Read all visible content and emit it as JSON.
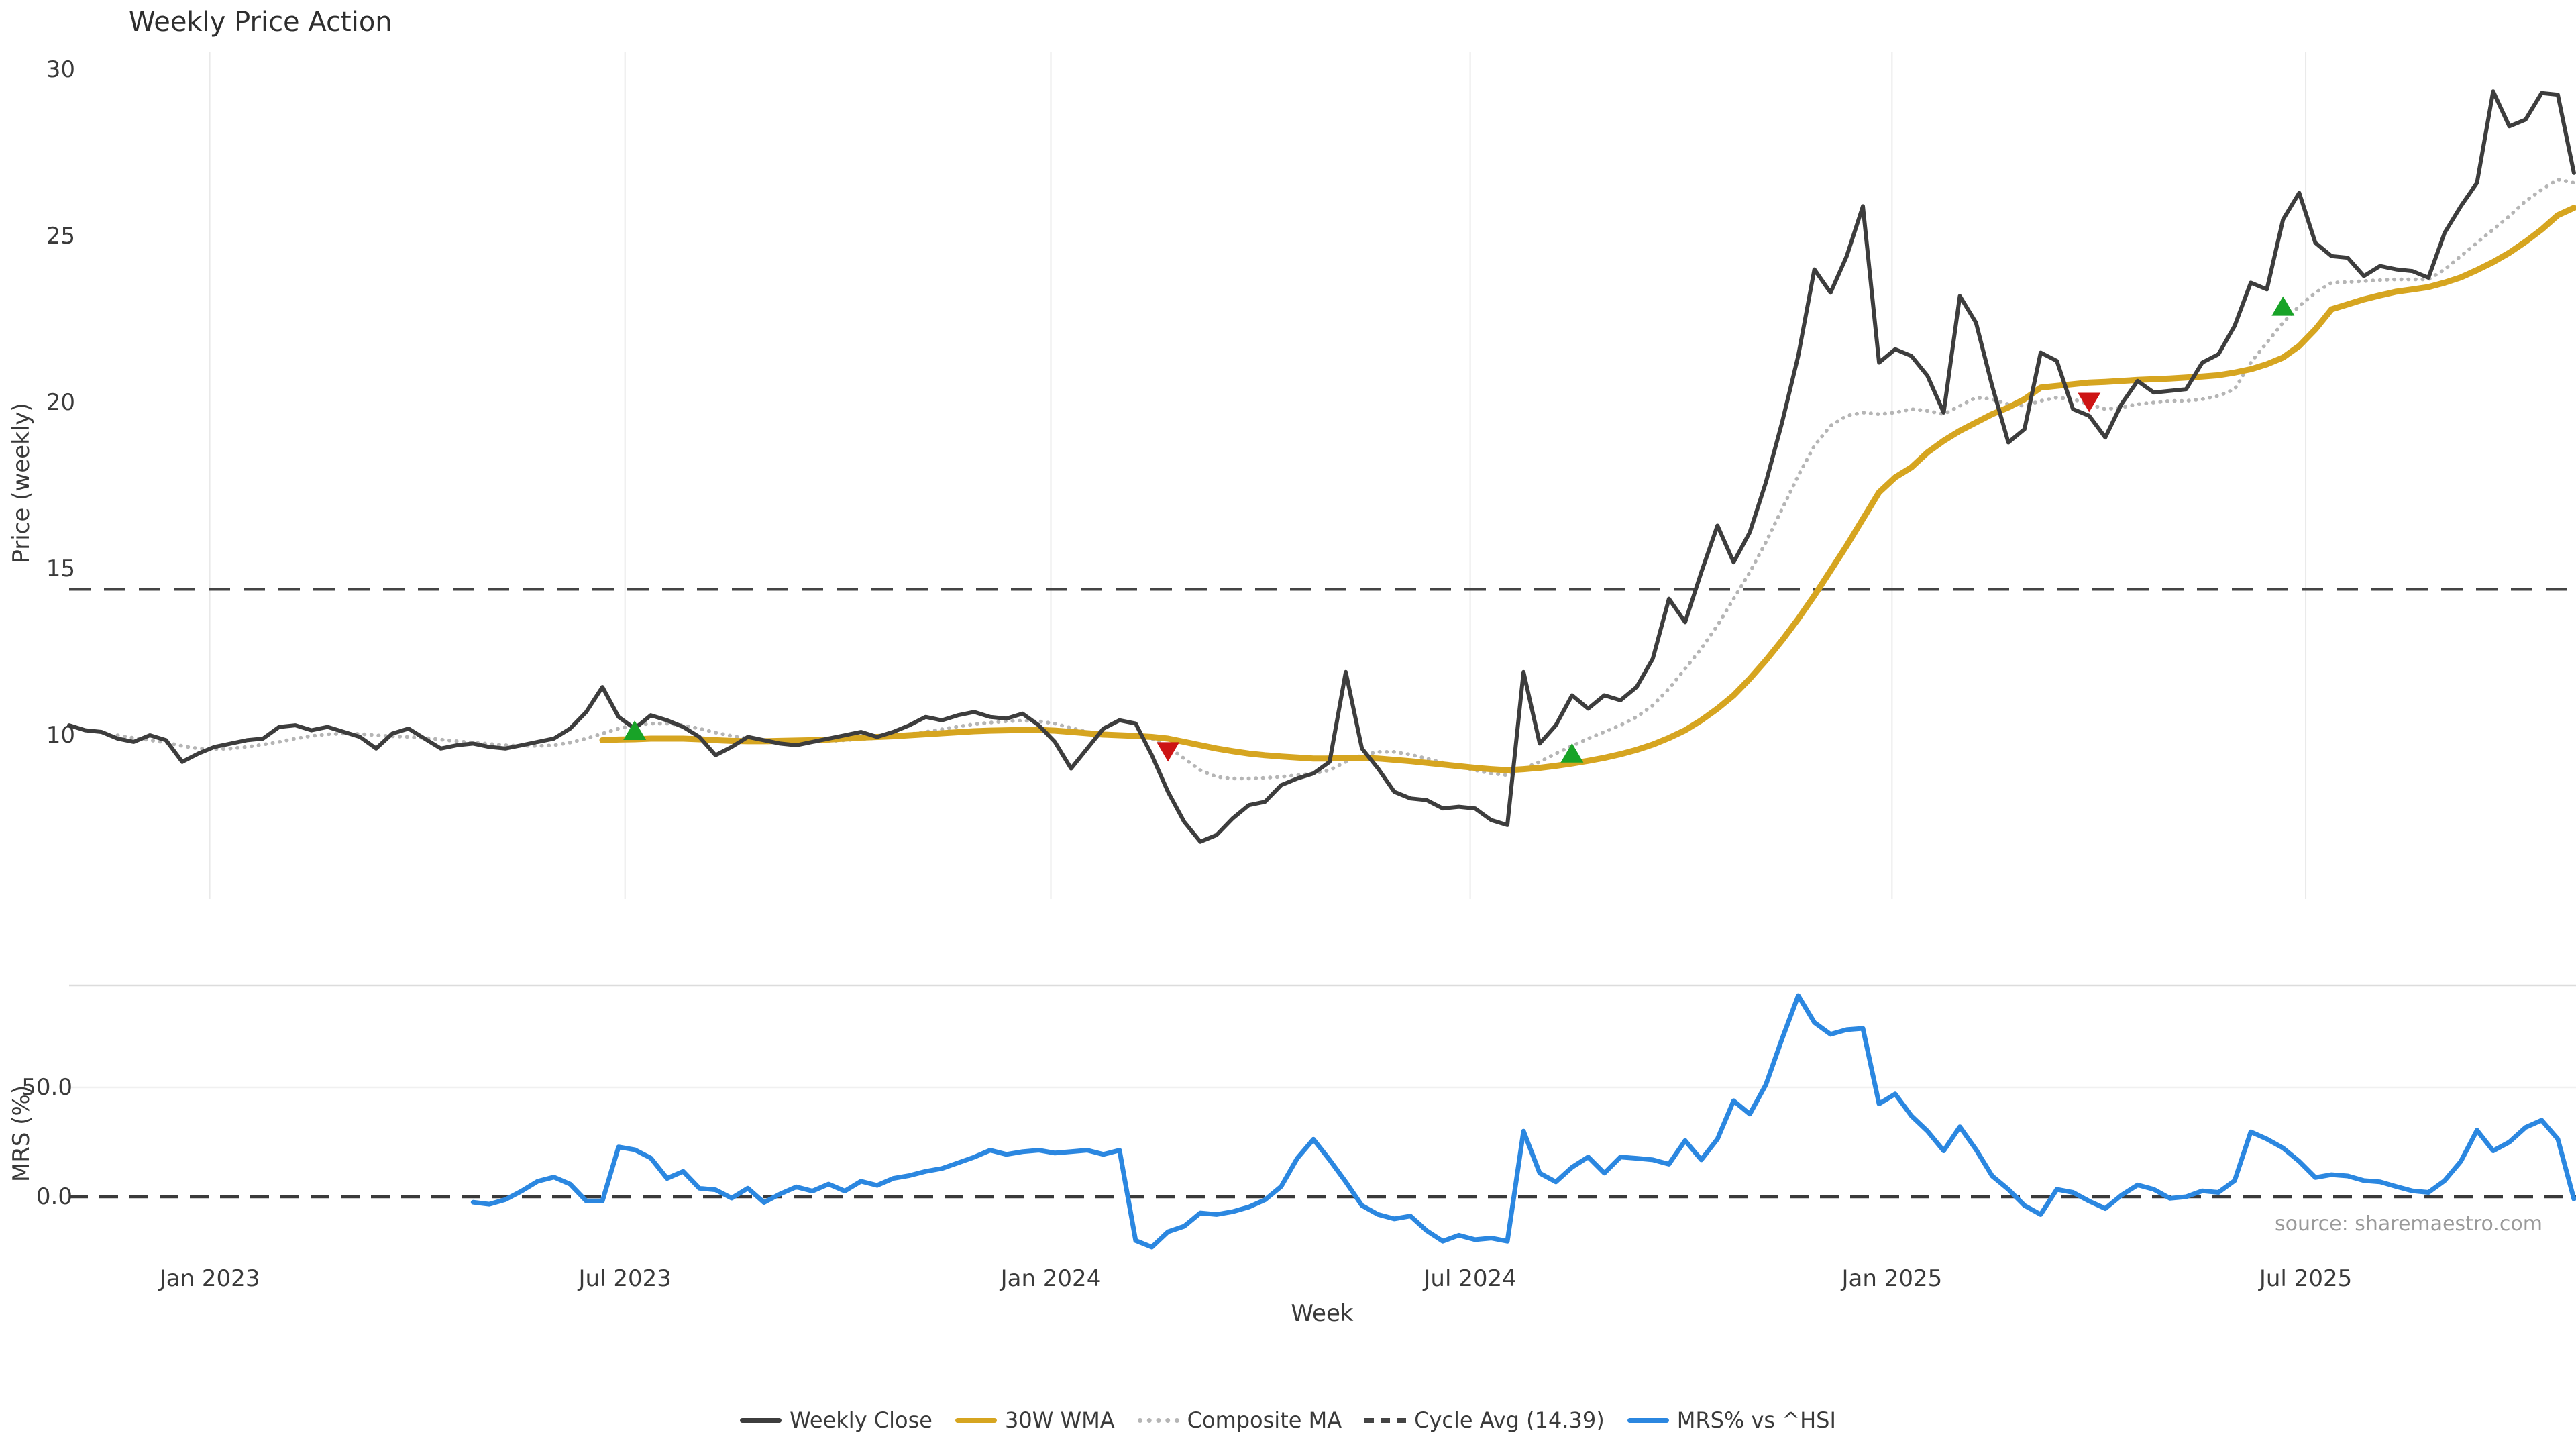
{
  "title": "Weekly Price Action",
  "source_note": "source: sharemaestro.com",
  "legend": [
    {
      "label": "Weekly Close",
      "color": "#3d3d3d",
      "style": "solid"
    },
    {
      "label": "30W WMA",
      "color": "#d6a520",
      "style": "solid"
    },
    {
      "label": "Composite MA",
      "color": "#b5b5b5",
      "style": "dotted"
    },
    {
      "label": "Cycle Avg (14.39)",
      "color": "#444444",
      "style": "dashed"
    },
    {
      "label": "MRS% vs ^HSI",
      "color": "#2b87e0",
      "style": "solid"
    }
  ],
  "chart_data": {
    "type": "line",
    "x_unit": "weeks",
    "x_start": "Nov 2022",
    "xlabel": "Week",
    "x_ticks": [
      {
        "label": "Jan 2023",
        "week": 8.7
      },
      {
        "label": "Jul 2023",
        "week": 34.4
      },
      {
        "label": "Jan 2024",
        "week": 60.75
      },
      {
        "label": "Jul 2024",
        "week": 86.7
      },
      {
        "label": "Jan 2025",
        "week": 112.8
      },
      {
        "label": "Jul 2025",
        "week": 138.4
      }
    ],
    "panels": [
      {
        "name": "price",
        "ylabel": "Price (weekly)",
        "ylim": [
          6.5,
          30.5
        ],
        "yticks": [
          {
            "label": "30",
            "value": 30
          },
          {
            "label": "25",
            "value": 25
          },
          {
            "label": "20",
            "value": 20
          },
          {
            "label": "15",
            "value": 15
          },
          {
            "label": "10",
            "value": 10
          }
        ],
        "cycle_avg": 14.39,
        "series": [
          {
            "name": "Weekly Close",
            "color": "#3d3d3d",
            "style": "solid",
            "width": 6,
            "start_week": 0,
            "values": [
              10.3,
              10.15,
              10.1,
              9.9,
              9.8,
              10.0,
              9.85,
              9.2,
              9.45,
              9.65,
              9.75,
              9.85,
              9.9,
              10.25,
              10.3,
              10.15,
              10.25,
              10.1,
              9.95,
              9.6,
              10.05,
              10.2,
              9.9,
              9.6,
              9.7,
              9.75,
              9.65,
              9.6,
              9.7,
              9.8,
              9.9,
              10.2,
              10.7,
              11.45,
              10.55,
              10.2,
              10.6,
              10.45,
              10.25,
              9.95,
              9.4,
              9.65,
              9.95,
              9.85,
              9.75,
              9.7,
              9.8,
              9.9,
              10.0,
              10.1,
              9.95,
              10.1,
              10.3,
              10.55,
              10.45,
              10.6,
              10.7,
              10.55,
              10.5,
              10.65,
              10.3,
              9.8,
              9.0,
              9.6,
              10.2,
              10.45,
              10.35,
              9.4,
              8.3,
              7.4,
              6.8,
              7.0,
              7.5,
              7.9,
              8.0,
              8.5,
              8.7,
              8.85,
              9.2,
              11.9,
              9.6,
              9.0,
              8.3,
              8.1,
              8.05,
              7.8,
              7.85,
              7.8,
              7.45,
              7.3,
              11.9,
              9.75,
              10.3,
              11.2,
              10.8,
              11.2,
              11.05,
              11.45,
              12.3,
              14.1,
              13.4,
              14.9,
              16.3,
              15.2,
              16.1,
              17.6,
              19.4,
              21.4,
              24.0,
              23.3,
              24.4,
              25.9,
              21.2,
              21.6,
              21.4,
              20.8,
              19.7,
              23.2,
              22.4,
              20.5,
              18.8,
              19.2,
              21.5,
              21.25,
              19.8,
              19.6,
              18.95,
              19.95,
              20.65,
              20.3,
              20.35,
              20.4,
              21.2,
              21.45,
              22.3,
              23.6,
              23.4,
              25.5,
              26.3,
              24.8,
              24.4,
              24.35,
              23.8,
              24.1,
              24.0,
              23.95,
              23.75,
              25.1,
              25.9,
              26.6,
              29.35,
              28.3,
              28.5,
              29.3,
              29.25,
              26.9
            ]
          },
          {
            "name": "30W WMA",
            "color": "#d6a520",
            "style": "solid",
            "width": 9,
            "start_week": 33,
            "values": [
              9.85,
              9.87,
              9.88,
              9.9,
              9.9,
              9.9,
              9.88,
              9.85,
              9.83,
              9.82,
              9.82,
              9.83,
              9.84,
              9.85,
              9.87,
              9.9,
              9.93,
              9.95,
              9.97,
              10.0,
              10.03,
              10.06,
              10.09,
              10.12,
              10.14,
              10.15,
              10.16,
              10.16,
              10.14,
              10.1,
              10.06,
              10.02,
              10.0,
              9.98,
              9.95,
              9.9,
              9.8,
              9.7,
              9.6,
              9.52,
              9.45,
              9.4,
              9.36,
              9.33,
              9.3,
              9.3,
              9.32,
              9.32,
              9.3,
              9.26,
              9.22,
              9.17,
              9.12,
              9.07,
              9.02,
              8.98,
              8.95,
              8.98,
              9.02,
              9.08,
              9.15,
              9.23,
              9.32,
              9.43,
              9.56,
              9.72,
              9.92,
              10.15,
              10.45,
              10.8,
              11.2,
              11.7,
              12.25,
              12.85,
              13.5,
              14.2,
              14.95,
              15.7,
              16.5,
              17.3,
              17.75,
              18.05,
              18.5,
              18.85,
              19.15,
              19.4,
              19.65,
              19.85,
              20.1,
              20.45,
              20.5,
              20.55,
              20.6,
              20.62,
              20.65,
              20.68,
              20.7,
              20.72,
              20.75,
              20.78,
              20.82,
              20.9,
              21.0,
              21.15,
              21.35,
              21.7,
              22.2,
              22.8,
              22.95,
              23.1,
              23.22,
              23.33,
              23.4,
              23.47,
              23.6,
              23.76,
              23.98,
              24.22,
              24.5,
              24.83,
              25.2,
              25.63,
              25.85
            ]
          },
          {
            "name": "Composite MA",
            "color": "#b5b5b5",
            "style": "dotted",
            "width": 5.5,
            "start_week": 3,
            "values": [
              10.0,
              9.92,
              9.85,
              9.78,
              9.68,
              9.6,
              9.58,
              9.6,
              9.65,
              9.72,
              9.8,
              9.9,
              9.98,
              10.03,
              10.05,
              10.04,
              10.0,
              9.97,
              9.95,
              9.92,
              9.87,
              9.82,
              9.78,
              9.74,
              9.7,
              9.68,
              9.68,
              9.7,
              9.78,
              9.9,
              10.05,
              10.2,
              10.3,
              10.35,
              10.35,
              10.3,
              10.2,
              10.08,
              9.98,
              9.9,
              9.85,
              9.82,
              9.8,
              9.8,
              9.82,
              9.85,
              9.88,
              9.92,
              9.97,
              10.03,
              10.1,
              10.18,
              10.26,
              10.33,
              10.38,
              10.42,
              10.44,
              10.42,
              10.35,
              10.22,
              10.1,
              10.02,
              10.0,
              10.0,
              9.9,
              9.65,
              9.3,
              8.95,
              8.75,
              8.7,
              8.7,
              8.72,
              8.75,
              8.8,
              8.85,
              8.95,
              9.2,
              9.4,
              9.5,
              9.5,
              9.42,
              9.3,
              9.18,
              9.05,
              8.95,
              8.85,
              8.8,
              9.0,
              9.2,
              9.45,
              9.68,
              9.9,
              10.1,
              10.3,
              10.55,
              10.9,
              11.4,
              12.0,
              12.6,
              13.3,
              14.1,
              14.9,
              15.8,
              16.8,
              17.8,
              18.7,
              19.3,
              19.6,
              19.7,
              19.65,
              19.7,
              19.8,
              19.75,
              19.65,
              19.9,
              20.15,
              20.1,
              19.95,
              19.9,
              20.05,
              20.15,
              20.1,
              19.95,
              19.8,
              19.85,
              19.95,
              20.0,
              20.05,
              20.05,
              20.1,
              20.2,
              20.4,
              21.2,
              21.8,
              22.4,
              22.9,
              23.3,
              23.6,
              23.62,
              23.65,
              23.68,
              23.7,
              23.7,
              23.7,
              24.0,
              24.4,
              24.8,
              25.2,
              25.6,
              26.05,
              26.4,
              26.7,
              26.6
            ]
          }
        ],
        "markers": {
          "buy": {
            "color": "#18a327",
            "points": [
              {
                "week": 35,
                "price": 10.1
              },
              {
                "week": 93,
                "price": 9.42
              },
              {
                "week": 137,
                "price": 22.85
              }
            ]
          },
          "sell": {
            "color": "#cd1414",
            "points": [
              {
                "week": 68,
                "price": 9.55
              },
              {
                "week": 125,
                "price": 20.05
              }
            ]
          }
        }
      },
      {
        "name": "mrs",
        "ylabel": "MRS (%)",
        "yticks": [
          {
            "label": "50.0",
            "value": 50
          },
          {
            "label": "0.0",
            "value": 0
          }
        ],
        "zero_line": 0,
        "series": [
          {
            "name": "MRS% vs ^HSI",
            "color": "#2b87e0",
            "style": "solid",
            "width": 7,
            "start_week": 25,
            "values": [
              -2.5,
              -3.4,
              -1.3,
              2.6,
              7.1,
              9.0,
              5.8,
              -1.9,
              -1.9,
              22.8,
              21.5,
              17.7,
              8.4,
              11.6,
              3.9,
              3.2,
              -0.6,
              3.9,
              -2.6,
              1.3,
              4.5,
              2.6,
              5.8,
              2.6,
              7.1,
              5.2,
              8.4,
              9.7,
              11.6,
              12.9,
              15.5,
              18.1,
              21.3,
              19.4,
              20.6,
              21.3,
              20.0,
              20.6,
              21.3,
              19.4,
              21.3,
              -20.0,
              -23.0,
              -16.0,
              -13.5,
              -7.4,
              -8.1,
              -6.8,
              -4.7,
              -1.4,
              4.7,
              17.6,
              26.3,
              16.9,
              6.8,
              -4.0,
              -8.1,
              -10.1,
              -8.8,
              -15.5,
              -20.3,
              -17.6,
              -19.6,
              -18.9,
              -20.3,
              30.0,
              10.8,
              6.8,
              13.5,
              18.2,
              10.8,
              18.2,
              17.6,
              16.9,
              14.9,
              25.7,
              16.9,
              26.4,
              43.9,
              37.8,
              51.3,
              72.2,
              92.0,
              79.7,
              74.3,
              76.4,
              77.0,
              42.5,
              47.0,
              37.0,
              30.0,
              21.0,
              32.0,
              21.6,
              9.5,
              3.4,
              -4.0,
              -8.1,
              3.4,
              2.0,
              -2.0,
              -5.4,
              0.7,
              5.4,
              3.4,
              -0.7,
              0.0,
              2.7,
              2.0,
              7.4,
              29.7,
              26.4,
              22.3,
              16.2,
              8.8,
              10.1,
              9.5,
              7.4,
              6.8,
              4.7,
              2.7,
              2.0,
              7.4,
              16.2,
              30.4,
              21.0,
              25.0,
              31.7,
              35.0,
              26.4,
              -1.0
            ]
          }
        ]
      }
    ]
  }
}
